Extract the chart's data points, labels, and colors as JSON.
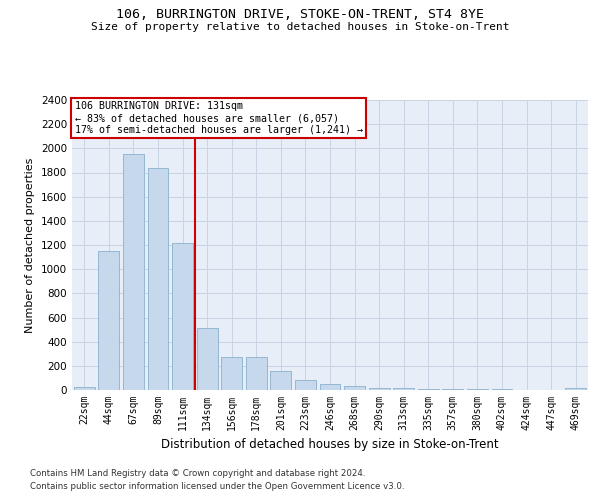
{
  "title1": "106, BURRINGTON DRIVE, STOKE-ON-TRENT, ST4 8YE",
  "title2": "Size of property relative to detached houses in Stoke-on-Trent",
  "xlabel": "Distribution of detached houses by size in Stoke-on-Trent",
  "ylabel": "Number of detached properties",
  "categories": [
    "22sqm",
    "44sqm",
    "67sqm",
    "89sqm",
    "111sqm",
    "134sqm",
    "156sqm",
    "178sqm",
    "201sqm",
    "223sqm",
    "246sqm",
    "268sqm",
    "290sqm",
    "313sqm",
    "335sqm",
    "357sqm",
    "380sqm",
    "402sqm",
    "424sqm",
    "447sqm",
    "469sqm"
  ],
  "values": [
    25,
    1150,
    1950,
    1840,
    1220,
    515,
    270,
    270,
    155,
    80,
    48,
    35,
    15,
    15,
    12,
    8,
    5,
    5,
    3,
    3,
    15
  ],
  "bar_color": "#c6d9ec",
  "bar_edge_color": "#8ab0cc",
  "property_line_x": 4.5,
  "annotation_line1": "106 BURRINGTON DRIVE: 131sqm",
  "annotation_line2": "← 83% of detached houses are smaller (6,057)",
  "annotation_line3": "17% of semi-detached houses are larger (1,241) →",
  "annotation_box_color": "#cc0000",
  "ylim": [
    0,
    2400
  ],
  "yticks": [
    0,
    200,
    400,
    600,
    800,
    1000,
    1200,
    1400,
    1600,
    1800,
    2000,
    2200,
    2400
  ],
  "grid_color": "#c8d4e4",
  "background_color": "#e8eef8",
  "footer1": "Contains HM Land Registry data © Crown copyright and database right 2024.",
  "footer2": "Contains public sector information licensed under the Open Government Licence v3.0."
}
